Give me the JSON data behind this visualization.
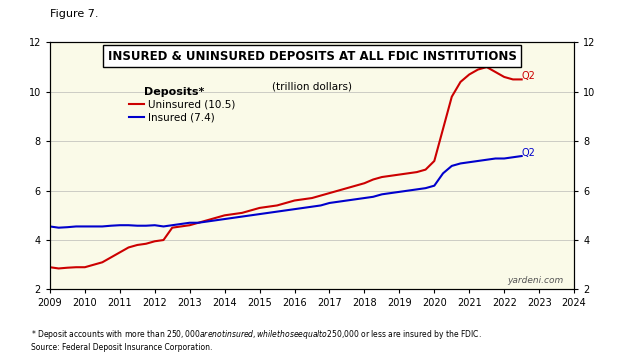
{
  "title_main": "INSURED & UNINSURED DEPOSITS AT ALL FDIC INSTITUTIONS",
  "title_sub": "(trillion dollars)",
  "figure_label": "Figure 7.",
  "background_color": "#FAFAE8",
  "outer_background": "#FFFFFF",
  "ylim": [
    2,
    12
  ],
  "yticks": [
    2,
    4,
    6,
    8,
    10,
    12
  ],
  "xlabel_years": [
    2009,
    2010,
    2011,
    2012,
    2013,
    2014,
    2015,
    2016,
    2017,
    2018,
    2019,
    2020,
    2021,
    2022,
    2023,
    2024
  ],
  "footnote": "* Deposit accounts with more than $250,000 are not insured, while those equal to $250,000 or less are insured by the FDIC.\nSource: Federal Deposit Insurance Corporation.",
  "watermark": "yardeni.com",
  "legend_title": "Deposits*",
  "uninsured_label": "Uninsured (10.5)",
  "insured_label": "Insured (7.4)",
  "uninsured_color": "#CC0000",
  "insured_color": "#0000CC",
  "uninsured_x": [
    2009.0,
    2009.25,
    2009.5,
    2009.75,
    2010.0,
    2010.25,
    2010.5,
    2010.75,
    2011.0,
    2011.25,
    2011.5,
    2011.75,
    2012.0,
    2012.25,
    2012.5,
    2012.75,
    2013.0,
    2013.25,
    2013.5,
    2013.75,
    2014.0,
    2014.25,
    2014.5,
    2014.75,
    2015.0,
    2015.25,
    2015.5,
    2015.75,
    2016.0,
    2016.25,
    2016.5,
    2016.75,
    2017.0,
    2017.25,
    2017.5,
    2017.75,
    2018.0,
    2018.25,
    2018.5,
    2018.75,
    2019.0,
    2019.25,
    2019.5,
    2019.75,
    2020.0,
    2020.25,
    2020.5,
    2020.75,
    2021.0,
    2021.25,
    2021.5,
    2021.75,
    2022.0,
    2022.25,
    2022.5
  ],
  "uninsured_y": [
    2.9,
    2.85,
    2.88,
    2.9,
    2.9,
    3.0,
    3.1,
    3.3,
    3.5,
    3.7,
    3.8,
    3.85,
    3.95,
    4.0,
    4.5,
    4.55,
    4.6,
    4.7,
    4.8,
    4.9,
    5.0,
    5.05,
    5.1,
    5.2,
    5.3,
    5.35,
    5.4,
    5.5,
    5.6,
    5.65,
    5.7,
    5.8,
    5.9,
    6.0,
    6.1,
    6.2,
    6.3,
    6.45,
    6.55,
    6.6,
    6.65,
    6.7,
    6.75,
    6.85,
    7.2,
    8.5,
    9.8,
    10.4,
    10.7,
    10.9,
    11.0,
    10.8,
    10.6,
    10.5,
    10.5
  ],
  "insured_x": [
    2009.0,
    2009.25,
    2009.5,
    2009.75,
    2010.0,
    2010.25,
    2010.5,
    2010.75,
    2011.0,
    2011.25,
    2011.5,
    2011.75,
    2012.0,
    2012.25,
    2012.5,
    2012.75,
    2013.0,
    2013.25,
    2013.5,
    2013.75,
    2014.0,
    2014.25,
    2014.5,
    2014.75,
    2015.0,
    2015.25,
    2015.5,
    2015.75,
    2016.0,
    2016.25,
    2016.5,
    2016.75,
    2017.0,
    2017.25,
    2017.5,
    2017.75,
    2018.0,
    2018.25,
    2018.5,
    2018.75,
    2019.0,
    2019.25,
    2019.5,
    2019.75,
    2020.0,
    2020.25,
    2020.5,
    2020.75,
    2021.0,
    2021.25,
    2021.5,
    2021.75,
    2022.0,
    2022.25,
    2022.5
  ],
  "insured_y": [
    4.55,
    4.5,
    4.52,
    4.55,
    4.55,
    4.55,
    4.55,
    4.58,
    4.6,
    4.6,
    4.58,
    4.58,
    4.6,
    4.55,
    4.6,
    4.65,
    4.7,
    4.7,
    4.75,
    4.8,
    4.85,
    4.9,
    4.95,
    5.0,
    5.05,
    5.1,
    5.15,
    5.2,
    5.25,
    5.3,
    5.35,
    5.4,
    5.5,
    5.55,
    5.6,
    5.65,
    5.7,
    5.75,
    5.85,
    5.9,
    5.95,
    6.0,
    6.05,
    6.1,
    6.2,
    6.7,
    7.0,
    7.1,
    7.15,
    7.2,
    7.25,
    7.3,
    7.3,
    7.35,
    7.4
  ]
}
